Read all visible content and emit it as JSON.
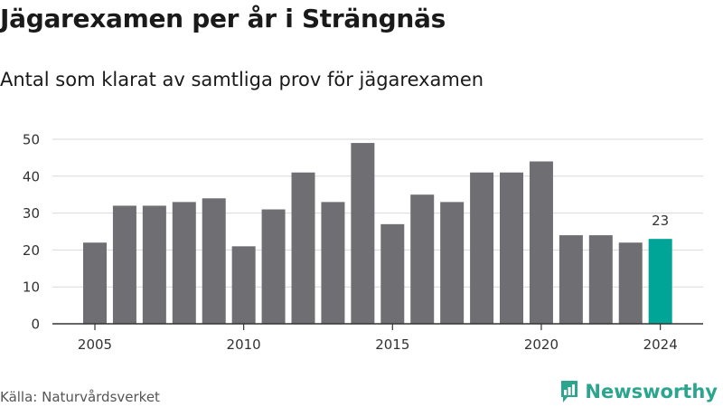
{
  "title": "Jägarexamen per år i Strängnäs",
  "subtitle": "Antal som klarat av samtliga prov för jägarexamen",
  "source": "Källa: Naturvårdsverket",
  "brand": "Newsworthy",
  "colors": {
    "bar": "#6f6e73",
    "highlight": "#00a598",
    "grid": "#d9d9d9",
    "axis": "#333333",
    "brand": "#2ba58e"
  },
  "chart_data": {
    "type": "bar",
    "categories": [
      "2005",
      "2006",
      "2007",
      "2008",
      "2009",
      "2010",
      "2011",
      "2012",
      "2013",
      "2014",
      "2015",
      "2016",
      "2017",
      "2018",
      "2019",
      "2020",
      "2021",
      "2022",
      "2023",
      "2024"
    ],
    "values": [
      22,
      32,
      32,
      33,
      34,
      21,
      31,
      41,
      33,
      49,
      27,
      35,
      33,
      41,
      41,
      44,
      24,
      24,
      22,
      23
    ],
    "x_tick_labels": [
      "2005",
      "2010",
      "2015",
      "2020",
      "2024"
    ],
    "y_ticks": [
      0,
      10,
      20,
      30,
      40,
      50
    ],
    "ylim": [
      0,
      50
    ],
    "highlight_category": "2024",
    "data_labels": [
      {
        "category": "2024",
        "text": "23"
      }
    ],
    "grid": true
  }
}
